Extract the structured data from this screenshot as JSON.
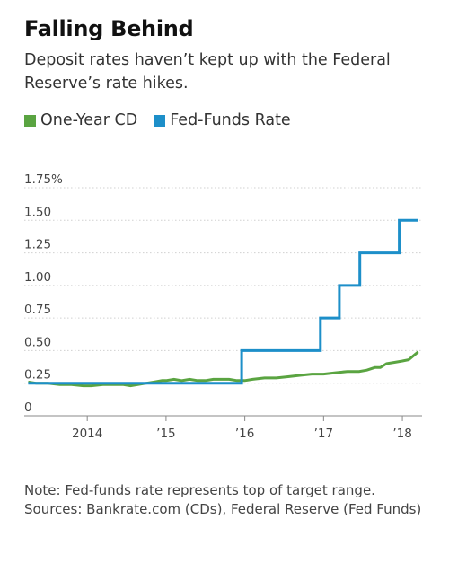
{
  "header": {
    "title": "Falling Behind",
    "subtitle": "Deposit rates haven’t kept up with the Federal Reserve’s rate hikes."
  },
  "footer": {
    "note": "Note: Fed-funds rate represents top of target range.",
    "sources": "Sources: Bankrate.com (CDs), Federal Reserve (Fed Funds)"
  },
  "chart_data": {
    "type": "line",
    "title": "",
    "xlabel": "",
    "ylabel": "",
    "xlim": [
      2013.2,
      2018.25
    ],
    "ylim": [
      0,
      1.75
    ],
    "grid": "horizontal",
    "legend_position": "top-left",
    "y_ticks": [
      {
        "value": 0,
        "label": "0"
      },
      {
        "value": 0.25,
        "label": "0.25"
      },
      {
        "value": 0.5,
        "label": "0.50"
      },
      {
        "value": 0.75,
        "label": "0.75"
      },
      {
        "value": 1.0,
        "label": "1.00"
      },
      {
        "value": 1.25,
        "label": "1.25"
      },
      {
        "value": 1.5,
        "label": "1.50"
      },
      {
        "value": 1.75,
        "label": "1.75%"
      }
    ],
    "x_ticks": [
      {
        "value": 2014,
        "label": "2014"
      },
      {
        "value": 2015,
        "label": "’15"
      },
      {
        "value": 2016,
        "label": "’16"
      },
      {
        "value": 2017,
        "label": "’17"
      },
      {
        "value": 2018,
        "label": "’18"
      }
    ],
    "series": [
      {
        "name": "One-Year CD",
        "color": "#5aa441",
        "x": [
          2013.25,
          2013.35,
          2013.5,
          2013.65,
          2013.8,
          2013.95,
          2014.05,
          2014.2,
          2014.35,
          2014.45,
          2014.55,
          2014.65,
          2014.75,
          2014.85,
          2014.95,
          2015.0,
          2015.1,
          2015.2,
          2015.3,
          2015.4,
          2015.5,
          2015.6,
          2015.7,
          2015.8,
          2015.9,
          2016.0,
          2016.1,
          2016.25,
          2016.4,
          2016.55,
          2016.7,
          2016.85,
          2017.0,
          2017.15,
          2017.3,
          2017.45,
          2017.55,
          2017.65,
          2017.72,
          2017.8,
          2017.9,
          2018.0,
          2018.08,
          2018.14,
          2018.2
        ],
        "y": [
          0.26,
          0.25,
          0.25,
          0.24,
          0.24,
          0.23,
          0.23,
          0.24,
          0.24,
          0.24,
          0.23,
          0.24,
          0.25,
          0.26,
          0.27,
          0.27,
          0.28,
          0.27,
          0.28,
          0.27,
          0.27,
          0.28,
          0.28,
          0.28,
          0.27,
          0.27,
          0.28,
          0.29,
          0.29,
          0.3,
          0.31,
          0.32,
          0.32,
          0.33,
          0.34,
          0.34,
          0.35,
          0.37,
          0.37,
          0.4,
          0.41,
          0.42,
          0.43,
          0.46,
          0.49
        ]
      },
      {
        "name": "Fed-Funds Rate",
        "color": "#1d8fc9",
        "x": [
          2013.25,
          2015.96,
          2015.96,
          2016.96,
          2016.96,
          2017.2,
          2017.2,
          2017.46,
          2017.46,
          2017.96,
          2017.96,
          2018.2
        ],
        "y": [
          0.25,
          0.25,
          0.5,
          0.5,
          0.75,
          0.75,
          1.0,
          1.0,
          1.25,
          1.25,
          1.5,
          1.5
        ]
      }
    ]
  }
}
